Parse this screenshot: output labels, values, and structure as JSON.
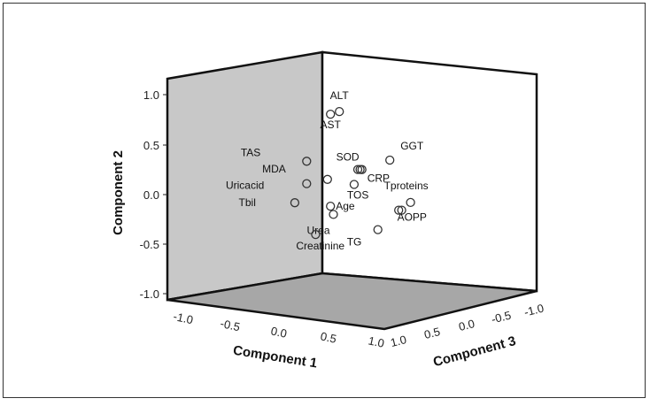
{
  "chart_data": {
    "type": "scatter",
    "subtype": "3d-component-plot",
    "title": "",
    "axes": {
      "x": {
        "label": "Component 1",
        "range": [
          -1.0,
          1.0
        ],
        "ticks": [
          "-1.0",
          "-0.5",
          "0.0",
          "0.5",
          "1.0"
        ]
      },
      "y": {
        "label": "Component 2",
        "range": [
          -1.0,
          1.0
        ],
        "ticks": [
          "1.0",
          "0.5",
          "0.0",
          "-0.5",
          "-1.0"
        ]
      },
      "z": {
        "label": "Component 3",
        "range": [
          -1.0,
          1.0
        ],
        "ticks": [
          "1.0",
          "0.5",
          "0.0",
          "-0.5",
          "-1.0"
        ]
      }
    },
    "points": [
      {
        "label": "ALT",
        "x": 0.3,
        "y": 0.88,
        "z": 0.75
      },
      {
        "label": "AST",
        "x": 0.2,
        "y": 0.85,
        "z": 0.8
      },
      {
        "label": "TAS",
        "x": -0.1,
        "y": 0.37,
        "z": 0.9
      },
      {
        "label": "SOD",
        "x": 0.45,
        "y": 0.3,
        "z": 0.55
      },
      {
        "label": "GGT",
        "x": 0.75,
        "y": 0.4,
        "z": 0.35
      },
      {
        "label": "CRP",
        "x": 0.48,
        "y": 0.3,
        "z": 0.55
      },
      {
        "label": "MDA",
        "x": 0.2,
        "y": 0.2,
        "z": 0.85
      },
      {
        "label": "Uricacid",
        "x": -0.05,
        "y": 0.15,
        "z": 0.95
      },
      {
        "label": "TOS",
        "x": 0.4,
        "y": 0.15,
        "z": 0.6
      },
      {
        "label": "Tproteins",
        "x": 0.95,
        "y": -0.02,
        "z": 0.2
      },
      {
        "label": "Tbil",
        "x": -0.25,
        "y": -0.05,
        "z": 0.95
      },
      {
        "label": "Age",
        "x": 0.2,
        "y": -0.07,
        "z": 0.8
      },
      {
        "label": "AOPP",
        "x": 0.85,
        "y": -0.1,
        "z": 0.25
      },
      {
        "label": "AOPP-2",
        "x": 0.82,
        "y": -0.1,
        "z": 0.27,
        "unlabeled": true
      },
      {
        "label": "Urea",
        "x": 0.25,
        "y": -0.15,
        "z": 0.8
      },
      {
        "label": "TG",
        "x": 0.6,
        "y": -0.3,
        "z": 0.4
      },
      {
        "label": "Creatinine",
        "x": 0.0,
        "y": -0.36,
        "z": 0.85
      },
      {
        "label": "SOD-2",
        "x": 0.43,
        "y": 0.3,
        "z": 0.57,
        "unlabeled": true
      }
    ],
    "grid": false,
    "legend": "none",
    "colors": {
      "wall_left": "#c8c8c8",
      "wall_right": "#ffffff",
      "floor": "#a7a7a7",
      "edge": "#111111",
      "marker": "#333333"
    }
  }
}
